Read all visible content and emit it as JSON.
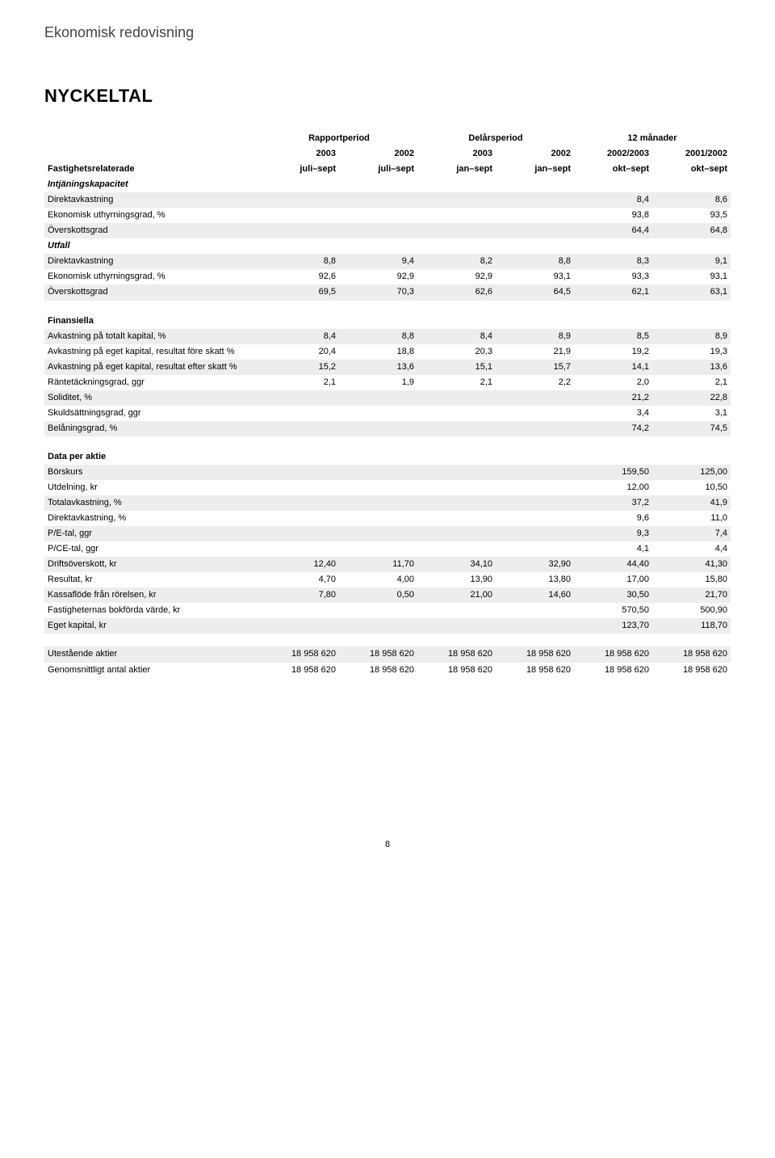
{
  "pretitle": "Ekonomisk redovisning",
  "title": "NYCKELTAL",
  "page_number": "8",
  "column_groups": [
    "Rapportperiod",
    "Delårsperiod",
    "12 månader"
  ],
  "years": [
    "2003",
    "2002",
    "2003",
    "2002",
    "2002/2003",
    "2001/2002"
  ],
  "periods": [
    "juli–sept",
    "juli–sept",
    "jan–sept",
    "jan–sept",
    "okt–sept",
    "okt–sept"
  ],
  "first_col_header": "Fastighetsrelaterade",
  "sections": {
    "intj": {
      "label": "Intjäningskapacitet",
      "rows": [
        {
          "label": "Direktavkastning",
          "cells": [
            "",
            "",
            "",
            "",
            "8,4",
            "8,6"
          ],
          "shade": true
        },
        {
          "label": "Ekonomisk uthyrningsgrad, %",
          "cells": [
            "",
            "",
            "",
            "",
            "93,8",
            "93,5"
          ]
        },
        {
          "label": "Överskottsgrad",
          "cells": [
            "",
            "",
            "",
            "",
            "64,4",
            "64,8"
          ],
          "shade": true
        }
      ]
    },
    "utfall": {
      "label": "Utfall",
      "rows": [
        {
          "label": "Direktavkastning",
          "cells": [
            "8,8",
            "9,4",
            "8,2",
            "8,8",
            "8,3",
            "9,1"
          ],
          "shade": true
        },
        {
          "label": "Ekonomisk uthyrningsgrad, %",
          "cells": [
            "92,6",
            "92,9",
            "92,9",
            "93,1",
            "93,3",
            "93,1"
          ]
        },
        {
          "label": "Överskottsgrad",
          "cells": [
            "69,5",
            "70,3",
            "62,6",
            "64,5",
            "62,1",
            "63,1"
          ],
          "shade": true
        }
      ]
    },
    "fin": {
      "label": "Finansiella",
      "rows": [
        {
          "label": "Avkastning på totalt kapital, %",
          "cells": [
            "8,4",
            "8,8",
            "8,4",
            "8,9",
            "8,5",
            "8,9"
          ],
          "shade": true
        },
        {
          "label": "Avkastning på eget kapital, resultat före skatt %",
          "cells": [
            "20,4",
            "18,8",
            "20,3",
            "21,9",
            "19,2",
            "19,3"
          ]
        },
        {
          "label": "Avkastning på eget kapital, resultat efter skatt %",
          "cells": [
            "15,2",
            "13,6",
            "15,1",
            "15,7",
            "14,1",
            "13,6"
          ],
          "shade": true
        },
        {
          "label": "Räntetäckningsgrad, ggr",
          "cells": [
            "2,1",
            "1,9",
            "2,1",
            "2,2",
            "2,0",
            "2,1"
          ]
        },
        {
          "label": "Soliditet, %",
          "cells": [
            "",
            "",
            "",
            "",
            "21,2",
            "22,8"
          ],
          "shade": true
        },
        {
          "label": "Skuldsättningsgrad, ggr",
          "cells": [
            "",
            "",
            "",
            "",
            "3,4",
            "3,1"
          ]
        },
        {
          "label": "Belåningsgrad, %",
          "cells": [
            "",
            "",
            "",
            "",
            "74,2",
            "74,5"
          ],
          "shade": true
        }
      ]
    },
    "data": {
      "label": "Data per aktie",
      "rows": [
        {
          "label": "Börskurs",
          "cells": [
            "",
            "",
            "",
            "",
            "159,50",
            "125,00"
          ],
          "shade": true
        },
        {
          "label": "Utdelning, kr",
          "cells": [
            "",
            "",
            "",
            "",
            "12,00",
            "10,50"
          ]
        },
        {
          "label": "Totalavkastning, %",
          "cells": [
            "",
            "",
            "",
            "",
            "37,2",
            "41,9"
          ],
          "shade": true
        },
        {
          "label": "Direktavkastning, %",
          "cells": [
            "",
            "",
            "",
            "",
            "9,6",
            "11,0"
          ]
        },
        {
          "label": "P/E-tal, ggr",
          "cells": [
            "",
            "",
            "",
            "",
            "9,3",
            "7,4"
          ],
          "shade": true
        },
        {
          "label": "P/CE-tal, ggr",
          "cells": [
            "",
            "",
            "",
            "",
            "4,1",
            "4,4"
          ]
        },
        {
          "label": "Driftsöverskott, kr",
          "cells": [
            "12,40",
            "11,70",
            "34,10",
            "32,90",
            "44,40",
            "41,30"
          ],
          "shade": true
        },
        {
          "label": "Resultat, kr",
          "cells": [
            "4,70",
            "4,00",
            "13,90",
            "13,80",
            "17,00",
            "15,80"
          ]
        },
        {
          "label": "Kassaflöde från rörelsen, kr",
          "cells": [
            "7,80",
            "0,50",
            "21,00",
            "14,60",
            "30,50",
            "21,70"
          ],
          "shade": true
        },
        {
          "label": "Fastigheternas bokförda värde, kr",
          "cells": [
            "",
            "",
            "",
            "",
            "570,50",
            "500,90"
          ]
        },
        {
          "label": "Eget kapital, kr",
          "cells": [
            "",
            "",
            "",
            "",
            "123,70",
            "118,70"
          ],
          "shade": true
        }
      ]
    },
    "shares": {
      "rows": [
        {
          "label": "Utestående aktier",
          "cells": [
            "18 958 620",
            "18 958 620",
            "18 958 620",
            "18 958 620",
            "18 958 620",
            "18 958 620"
          ],
          "shade": true
        },
        {
          "label": "Genomsnittligt antal aktier",
          "cells": [
            "18 958 620",
            "18 958 620",
            "18 958 620",
            "18 958 620",
            "18 958 620",
            "18 958 620"
          ]
        }
      ]
    }
  }
}
